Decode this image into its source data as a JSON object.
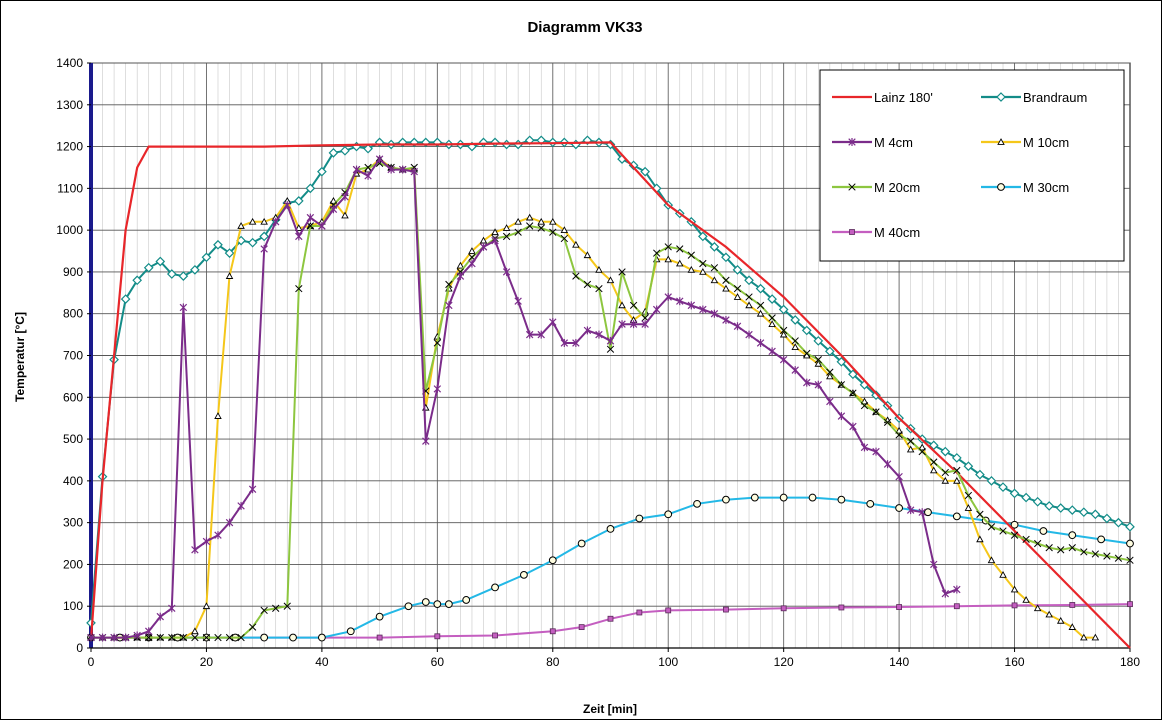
{
  "chart_data": {
    "type": "line",
    "title": "Diagramm VK33",
    "xlabel": "Zeit [min]",
    "ylabel": "Temperatur [°C]",
    "xlim": [
      0,
      180
    ],
    "ylim": [
      0,
      1400
    ],
    "xticks": [
      0,
      20,
      40,
      60,
      80,
      100,
      120,
      140,
      160,
      180
    ],
    "yticks": [
      0,
      100,
      200,
      300,
      400,
      500,
      600,
      700,
      800,
      900,
      1000,
      1100,
      1200,
      1300,
      1400
    ],
    "grid": true,
    "legend_position": "top-right",
    "series": [
      {
        "name": "Lainz 180'",
        "color": "#e8262a",
        "marker": "none",
        "x": [
          0,
          2,
          4,
          6,
          8,
          10,
          30,
          40,
          50,
          60,
          70,
          80,
          90,
          100,
          110,
          120,
          130,
          140,
          150,
          160,
          170,
          180
        ],
        "y": [
          20,
          400,
          700,
          1000,
          1150,
          1200,
          1200,
          1203,
          1205,
          1205,
          1207,
          1208,
          1210,
          1060,
          960,
          840,
          700,
          550,
          420,
          280,
          140,
          0
        ]
      },
      {
        "name": "Brandraum",
        "color": "#138c88",
        "marker": "diamond",
        "x": [
          0,
          2,
          4,
          6,
          8,
          10,
          12,
          14,
          16,
          18,
          20,
          22,
          24,
          26,
          28,
          30,
          32,
          34,
          36,
          38,
          40,
          42,
          44,
          46,
          48,
          50,
          52,
          54,
          56,
          58,
          60,
          62,
          64,
          66,
          68,
          70,
          72,
          74,
          76,
          78,
          80,
          82,
          84,
          86,
          88,
          90,
          92,
          94,
          96,
          98,
          100,
          102,
          104,
          106,
          108,
          110,
          112,
          114,
          116,
          118,
          120,
          122,
          124,
          126,
          128,
          130,
          132,
          134,
          136,
          138,
          140,
          142,
          144,
          146,
          148,
          150,
          152,
          154,
          156,
          158,
          160,
          162,
          164,
          166,
          168,
          170,
          172,
          174,
          176,
          178,
          180
        ],
        "y": [
          60,
          410,
          690,
          835,
          880,
          910,
          925,
          895,
          890,
          905,
          935,
          965,
          945,
          975,
          970,
          985,
          1025,
          1065,
          1070,
          1100,
          1140,
          1185,
          1190,
          1200,
          1195,
          1210,
          1205,
          1210,
          1210,
          1210,
          1210,
          1205,
          1205,
          1200,
          1210,
          1210,
          1205,
          1205,
          1215,
          1215,
          1210,
          1210,
          1205,
          1215,
          1210,
          1205,
          1170,
          1155,
          1140,
          1100,
          1060,
          1040,
          1020,
          985,
          960,
          935,
          905,
          880,
          860,
          835,
          810,
          785,
          760,
          735,
          710,
          685,
          655,
          630,
          605,
          580,
          550,
          525,
          500,
          485,
          470,
          455,
          435,
          415,
          400,
          385,
          370,
          360,
          350,
          340,
          335,
          330,
          325,
          320,
          310,
          300,
          290
        ]
      },
      {
        "name": "M 4cm",
        "color": "#7b2c8a",
        "marker": "star",
        "x": [
          0,
          2,
          4,
          6,
          8,
          10,
          12,
          14,
          16,
          18,
          20,
          22,
          24,
          26,
          28,
          30,
          32,
          34,
          36,
          38,
          40,
          42,
          44,
          46,
          48,
          50,
          52,
          54,
          56,
          58,
          60,
          62,
          64,
          66,
          68,
          70,
          72,
          74,
          76,
          78,
          80,
          82,
          84,
          86,
          88,
          90,
          92,
          94,
          96,
          98,
          100,
          102,
          104,
          106,
          108,
          110,
          112,
          114,
          116,
          118,
          120,
          122,
          124,
          126,
          128,
          130,
          132,
          134,
          136,
          138,
          140,
          142,
          144,
          146,
          148,
          150
        ],
        "y": [
          25,
          25,
          25,
          25,
          30,
          40,
          75,
          95,
          815,
          235,
          255,
          270,
          300,
          340,
          380,
          955,
          1020,
          1060,
          985,
          1030,
          1010,
          1050,
          1080,
          1145,
          1130,
          1170,
          1145,
          1145,
          1140,
          495,
          620,
          820,
          890,
          920,
          960,
          975,
          900,
          830,
          750,
          750,
          780,
          730,
          730,
          760,
          750,
          735,
          775,
          775,
          775,
          810,
          840,
          830,
          820,
          810,
          800,
          785,
          770,
          750,
          730,
          710,
          690,
          665,
          635,
          630,
          590,
          555,
          530,
          480,
          470,
          440,
          410,
          330,
          325,
          200,
          130,
          140
        ]
      },
      {
        "name": "M 10cm",
        "color": "#f5c71a",
        "marker": "triangle",
        "x": [
          0,
          2,
          4,
          6,
          8,
          10,
          12,
          14,
          16,
          18,
          20,
          22,
          24,
          26,
          28,
          30,
          32,
          34,
          36,
          38,
          40,
          42,
          44,
          46,
          48,
          50,
          52,
          54,
          56,
          58,
          60,
          62,
          64,
          66,
          68,
          70,
          72,
          74,
          76,
          78,
          80,
          82,
          84,
          86,
          88,
          90,
          92,
          94,
          96,
          98,
          100,
          102,
          104,
          106,
          108,
          110,
          112,
          114,
          116,
          118,
          120,
          122,
          124,
          126,
          128,
          130,
          132,
          134,
          136,
          138,
          140,
          142,
          144,
          146,
          148,
          150,
          152,
          154,
          156,
          158,
          160,
          162,
          164,
          166,
          168,
          170,
          172,
          174
        ],
        "y": [
          25,
          25,
          25,
          25,
          25,
          25,
          25,
          25,
          25,
          40,
          100,
          555,
          890,
          1010,
          1020,
          1020,
          1030,
          1070,
          1005,
          1010,
          1020,
          1070,
          1035,
          1135,
          1145,
          1170,
          1150,
          1145,
          1145,
          575,
          745,
          860,
          915,
          950,
          975,
          995,
          1005,
          1020,
          1030,
          1020,
          1020,
          1000,
          965,
          940,
          905,
          880,
          820,
          785,
          805,
          930,
          930,
          920,
          905,
          900,
          880,
          860,
          840,
          820,
          800,
          775,
          750,
          720,
          700,
          680,
          650,
          630,
          610,
          590,
          565,
          545,
          520,
          475,
          480,
          425,
          400,
          400,
          335,
          260,
          210,
          175,
          140,
          115,
          95,
          80,
          65,
          50,
          25,
          25
        ]
      },
      {
        "name": "M 20cm",
        "color": "#8dc63f",
        "marker": "cross",
        "x": [
          0,
          2,
          4,
          6,
          8,
          10,
          12,
          14,
          16,
          18,
          20,
          22,
          24,
          26,
          28,
          30,
          32,
          34,
          36,
          38,
          40,
          42,
          44,
          46,
          48,
          50,
          52,
          54,
          56,
          58,
          60,
          62,
          64,
          66,
          68,
          70,
          72,
          74,
          76,
          78,
          80,
          82,
          84,
          86,
          88,
          90,
          92,
          94,
          96,
          98,
          100,
          102,
          104,
          106,
          108,
          110,
          112,
          114,
          116,
          118,
          120,
          122,
          124,
          126,
          128,
          130,
          132,
          134,
          136,
          138,
          140,
          142,
          144,
          146,
          148,
          150,
          152,
          154,
          156,
          158,
          160,
          162,
          164,
          166,
          168,
          170,
          172,
          174,
          176,
          178,
          180
        ],
        "y": [
          25,
          25,
          25,
          25,
          25,
          25,
          25,
          25,
          25,
          25,
          25,
          25,
          25,
          25,
          50,
          90,
          95,
          100,
          860,
          1010,
          1010,
          1060,
          1090,
          1145,
          1150,
          1160,
          1150,
          1145,
          1150,
          615,
          730,
          870,
          900,
          935,
          960,
          980,
          985,
          995,
          1010,
          1005,
          995,
          980,
          890,
          870,
          860,
          715,
          900,
          820,
          790,
          945,
          960,
          955,
          940,
          920,
          910,
          880,
          860,
          840,
          820,
          790,
          760,
          735,
          705,
          690,
          660,
          630,
          610,
          580,
          565,
          540,
          510,
          495,
          470,
          445,
          420,
          425,
          365,
          320,
          290,
          280,
          270,
          260,
          250,
          240,
          235,
          240,
          230,
          225,
          220,
          215,
          210
        ]
      },
      {
        "name": "M 30cm",
        "color": "#23b8e6",
        "marker": "circle",
        "x": [
          0,
          5,
          10,
          15,
          20,
          25,
          30,
          35,
          40,
          45,
          50,
          55,
          58,
          60,
          62,
          65,
          70,
          75,
          80,
          85,
          90,
          95,
          100,
          105,
          110,
          115,
          120,
          125,
          130,
          135,
          140,
          145,
          150,
          155,
          160,
          165,
          170,
          175,
          180
        ],
        "y": [
          25,
          25,
          25,
          25,
          25,
          25,
          25,
          25,
          25,
          40,
          75,
          100,
          110,
          105,
          105,
          115,
          145,
          175,
          210,
          250,
          285,
          310,
          320,
          345,
          355,
          360,
          360,
          360,
          355,
          345,
          335,
          325,
          315,
          305,
          295,
          280,
          270,
          260,
          250
        ]
      },
      {
        "name": "M 40cm",
        "color": "#c45ec0",
        "marker": "square",
        "x": [
          0,
          10,
          20,
          30,
          40,
          50,
          60,
          70,
          80,
          85,
          90,
          95,
          100,
          110,
          120,
          130,
          140,
          150,
          160,
          170,
          180
        ],
        "y": [
          25,
          25,
          25,
          25,
          25,
          25,
          28,
          30,
          40,
          50,
          70,
          85,
          90,
          92,
          95,
          97,
          98,
          100,
          102,
          103,
          105
        ]
      }
    ]
  }
}
